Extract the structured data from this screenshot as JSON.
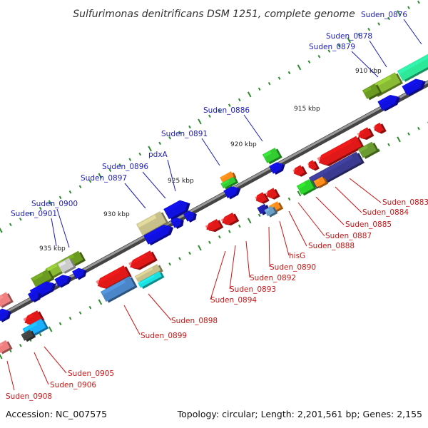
{
  "title": "Sulfurimonas denitrificans DSM 1251, complete genome",
  "footer": {
    "accession": "Accession: NC_007575",
    "summary": "Topology: circular; Length: 2,201,561 bp; Genes: 2,155"
  },
  "ticks": [
    "910 kbp",
    "915 kbp",
    "920 kbp",
    "925 kbp",
    "930 kbp",
    "935 kbp"
  ],
  "upper_labels": [
    "Suden_0876",
    "Suden_0878",
    "Suden_0879",
    "Suden_0886",
    "Suden_0891",
    "pdxA",
    "Suden_0896",
    "Suden_0897",
    "Suden_0900",
    "Suden_0901"
  ],
  "lower_labels": [
    "Suden_0883",
    "Suden_0884",
    "Suden_0885",
    "Suden_0887",
    "Suden_0888",
    "hisG",
    "Suden_0890",
    "Suden_0892",
    "Suden_0893",
    "Suden_0894",
    "Suden_0898",
    "Suden_0899",
    "Suden_0905",
    "Suden_0906",
    "Suden_0908"
  ],
  "colors": {
    "forward_cds": "#1010e0",
    "reverse_cds": "#e01818",
    "upper_label": "#1c1cb4",
    "lower_label": "#c81414",
    "backbone": "#777777",
    "tick": "#2e8b2e"
  }
}
